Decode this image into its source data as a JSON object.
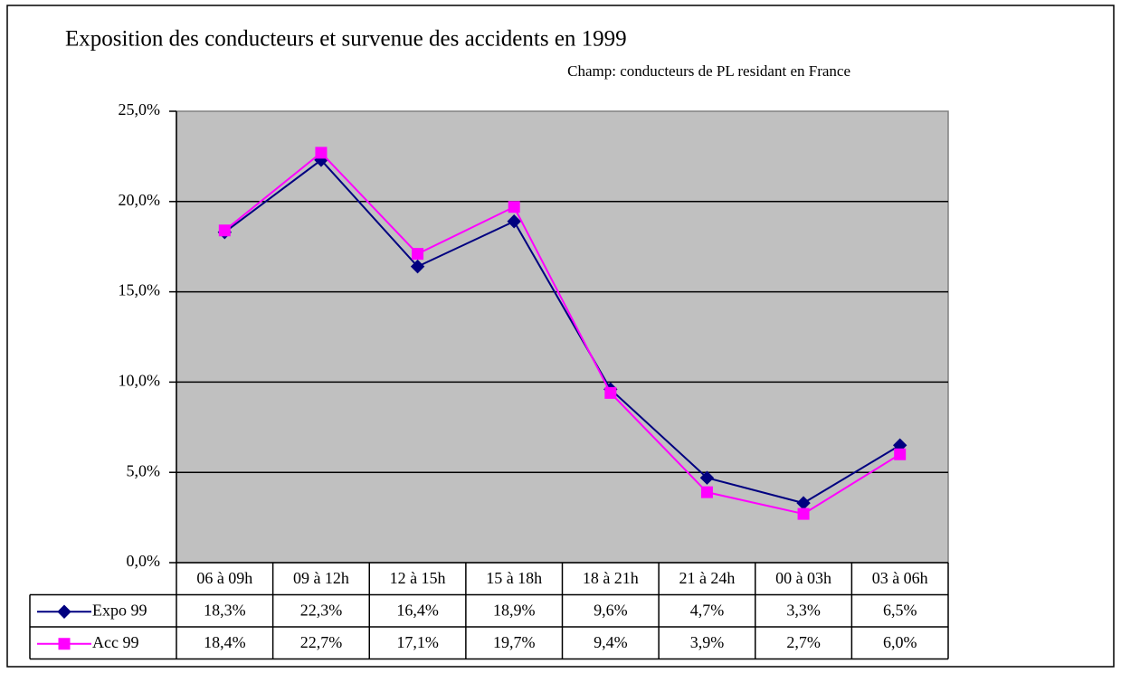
{
  "chart_data": {
    "type": "line",
    "title": "Exposition des conducteurs et survenue des accidents en 1999",
    "subtitle": "Champ: conducteurs de PL residant en France",
    "categories": [
      "06 à 09h",
      "09 à 12h",
      "12 à 15h",
      "15 à 18h",
      "18 à 21h",
      "21 à 24h",
      "00 à 03h",
      "03 à 06h"
    ],
    "series": [
      {
        "name": "Expo 99",
        "color": "#000080",
        "marker": "diamond",
        "values": [
          18.3,
          22.3,
          16.4,
          18.9,
          9.6,
          4.7,
          3.3,
          6.5
        ],
        "value_labels": [
          "18,3%",
          "22,3%",
          "16,4%",
          "18,9%",
          "9,6%",
          "4,7%",
          "3,3%",
          "6,5%"
        ]
      },
      {
        "name": "Acc 99",
        "color": "#ff00ff",
        "marker": "square",
        "values": [
          18.4,
          22.7,
          17.1,
          19.7,
          9.4,
          3.9,
          2.7,
          6.0
        ],
        "value_labels": [
          "18,4%",
          "22,7%",
          "17,1%",
          "19,7%",
          "9,4%",
          "3,9%",
          "2,7%",
          "6,0%"
        ]
      }
    ],
    "ylim": [
      0,
      25
    ],
    "yticks": [
      {
        "value": 0,
        "label": "0,0%"
      },
      {
        "value": 5,
        "label": "5,0%"
      },
      {
        "value": 10,
        "label": "10,0%"
      },
      {
        "value": 15,
        "label": "15,0%"
      },
      {
        "value": 20,
        "label": "20,0%"
      },
      {
        "value": 25,
        "label": "25,0%"
      }
    ],
    "grid": true,
    "plot_background": "#c0c0c0"
  }
}
